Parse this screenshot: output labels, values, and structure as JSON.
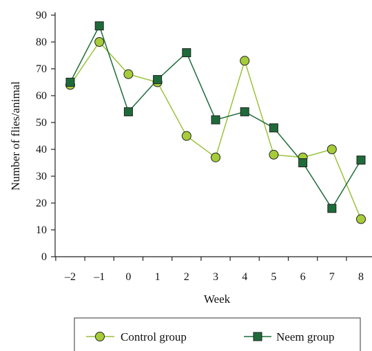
{
  "chart_data": {
    "type": "line",
    "xlabel": "Week",
    "ylabel": "Number of flies/animal",
    "x": [
      "–2",
      "–1",
      "0",
      "1",
      "2",
      "3",
      "4",
      "5",
      "6",
      "7",
      "8"
    ],
    "ylim": [
      0,
      90
    ],
    "yticks": [
      "0",
      "10",
      "20",
      "30",
      "40",
      "50",
      "60",
      "70",
      "80",
      "90"
    ],
    "grid": false,
    "legend_position": "bottom",
    "series": [
      {
        "name": "Control group",
        "marker": "circle",
        "color": "#a6cc3a",
        "line_color": "#9ac23a",
        "values": [
          64,
          80,
          68,
          65,
          45,
          37,
          73,
          38,
          37,
          40,
          14
        ]
      },
      {
        "name": "Neem group",
        "marker": "square",
        "color": "#1e6b3a",
        "line_color": "#1e6b3a",
        "values": [
          65,
          86,
          54,
          66,
          76,
          51,
          54,
          48,
          35,
          18,
          36
        ]
      }
    ]
  }
}
